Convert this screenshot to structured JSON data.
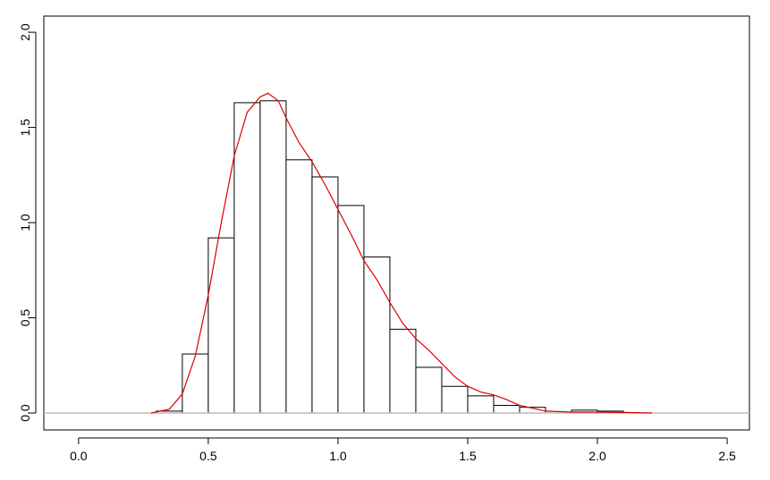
{
  "chart_data": {
    "type": "histogram",
    "bins": [
      0.3,
      0.4,
      0.5,
      0.6,
      0.7,
      0.8,
      0.9,
      1.0,
      1.1,
      1.2,
      1.3,
      1.4,
      1.5,
      1.6,
      1.7,
      1.8,
      1.9,
      2.0,
      2.1
    ],
    "values": [
      0.01,
      0.31,
      0.92,
      1.63,
      1.64,
      1.33,
      1.24,
      1.09,
      0.82,
      0.44,
      0.24,
      0.14,
      0.09,
      0.04,
      0.03,
      0.0,
      0.015,
      0.01
    ],
    "color": "#ffffff",
    "edgecolor": "#000000",
    "density": {
      "color": "#dd0000",
      "x": [
        0.28,
        0.35,
        0.4,
        0.45,
        0.5,
        0.55,
        0.6,
        0.65,
        0.7,
        0.73,
        0.77,
        0.8,
        0.85,
        0.9,
        0.95,
        1.0,
        1.05,
        1.1,
        1.15,
        1.2,
        1.25,
        1.3,
        1.35,
        1.4,
        1.45,
        1.5,
        1.55,
        1.6,
        1.65,
        1.7,
        1.75,
        1.8,
        1.9,
        2.0,
        2.1,
        2.21
      ],
      "values": [
        0,
        0.02,
        0.1,
        0.3,
        0.62,
        1.0,
        1.35,
        1.58,
        1.66,
        1.68,
        1.64,
        1.55,
        1.42,
        1.32,
        1.2,
        1.07,
        0.94,
        0.8,
        0.7,
        0.58,
        0.47,
        0.39,
        0.33,
        0.26,
        0.19,
        0.14,
        0.11,
        0.095,
        0.07,
        0.04,
        0.025,
        0.01,
        0.005,
        0.005,
        0.003,
        0
      ]
    },
    "hline": {
      "value": 0,
      "color": "#bebebe"
    },
    "xlim": [
      -0.134,
      2.586
    ],
    "ylim": [
      -0.089,
      2.085
    ],
    "xticks": [
      {
        "value": 0,
        "label": "0.0"
      },
      0.5,
      {
        "value": 1,
        "label": "1.0"
      },
      1.5,
      {
        "value": 2,
        "label": "2.0"
      },
      2.5
    ],
    "yticks": [
      {
        "value": 0,
        "label": "0.0"
      },
      0.5,
      {
        "value": 1,
        "label": "1.0"
      },
      1.5,
      {
        "value": 2,
        "label": "2.0"
      }
    ]
  }
}
